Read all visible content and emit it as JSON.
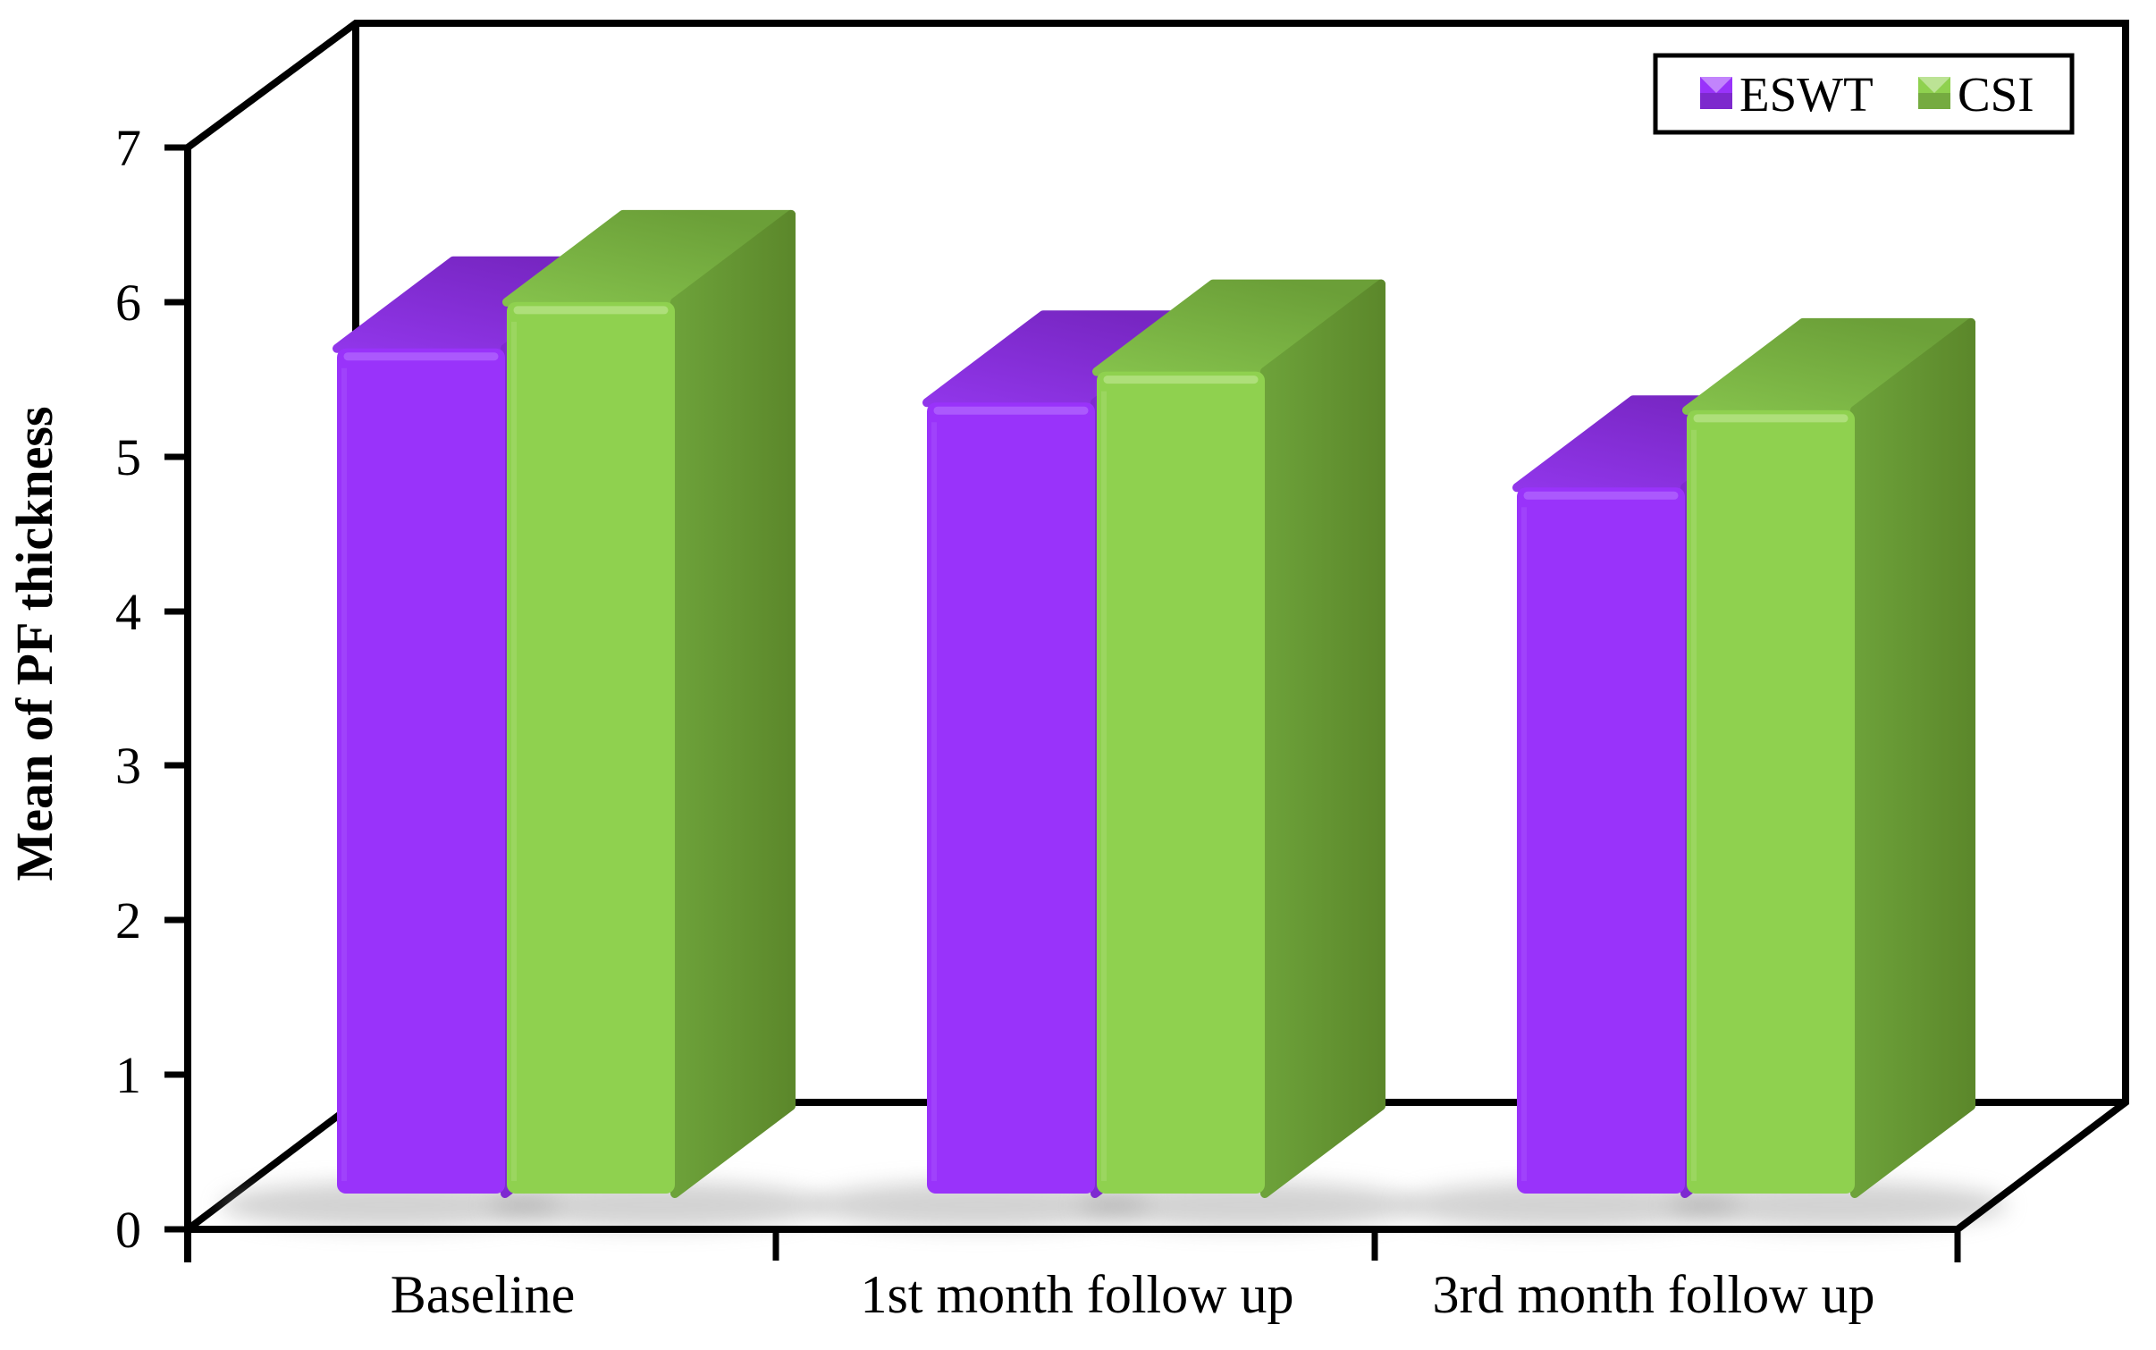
{
  "figure": {
    "background": "#ffffff",
    "axis_color": "#000000"
  },
  "chart_data": {
    "type": "bar",
    "projection": "3d-column",
    "title": "",
    "ylabel": "Mean of PF thickness",
    "xlabel": "",
    "ylim": [
      0,
      7
    ],
    "yticks": [
      "0",
      "1",
      "2",
      "3",
      "4",
      "5",
      "6",
      "7"
    ],
    "grid": false,
    "legend_position": "top-right",
    "shadow_color": "#a6a6a6",
    "categories": [
      "Baseline",
      "1st month follow up",
      "3rd month follow up"
    ],
    "series": [
      {
        "name": "ESWT",
        "values": [
          5.7,
          5.35,
          4.8
        ],
        "colors": {
          "front": "#9933fa",
          "top_light": "#9136ea",
          "top_dark": "#7726c2",
          "side_light": "#7e2ad0",
          "side_dark": "#6a21b4",
          "edge_highlight": "#b266ff"
        }
      },
      {
        "name": "CSI",
        "values": [
          6.0,
          5.55,
          5.3
        ],
        "colors": {
          "front": "#8fd14f",
          "top_light": "#85c24c",
          "top_dark": "#6b9f38",
          "side_light": "#6da23a",
          "side_dark": "#5c882b",
          "edge_highlight": "#b9e489"
        }
      }
    ]
  }
}
